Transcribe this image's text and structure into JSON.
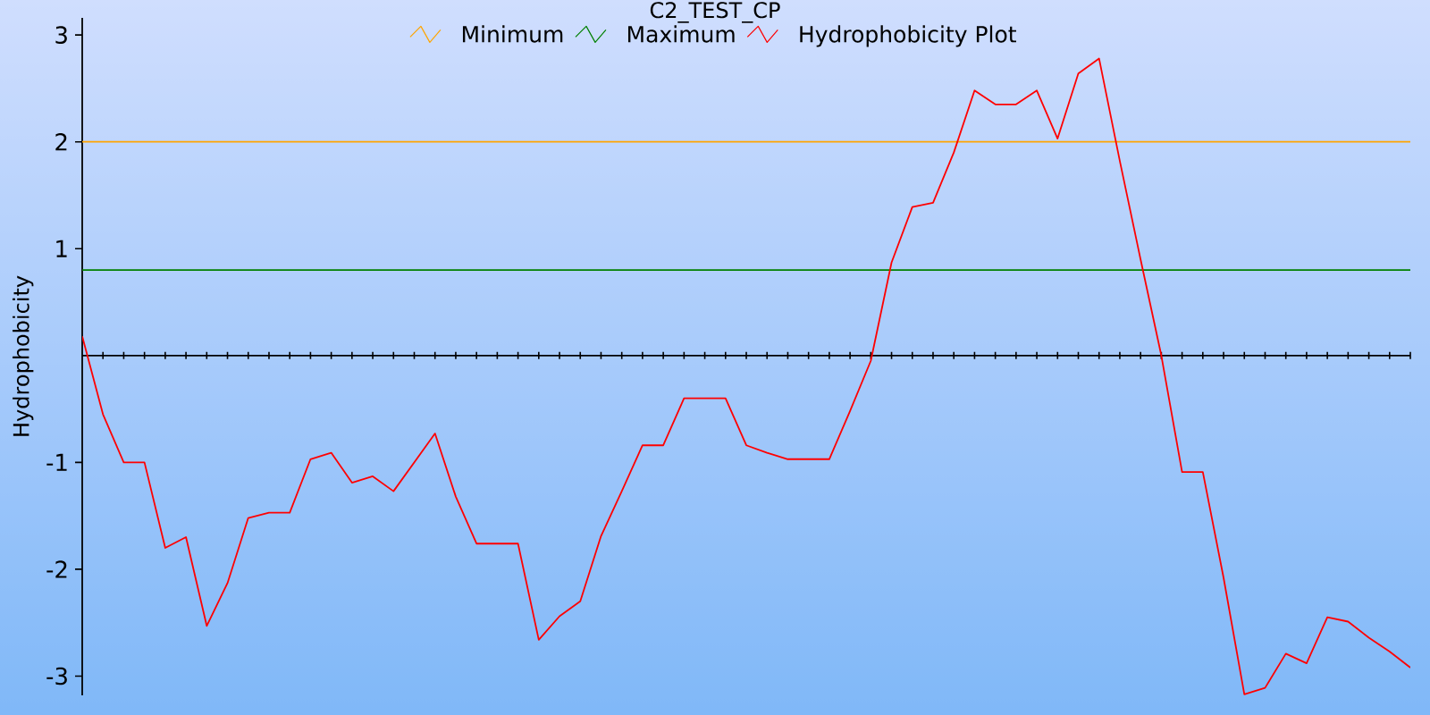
{
  "chart_data": {
    "type": "line",
    "title": "C2_TEST_CP",
    "ylabel": "Hydrophobicity",
    "categories": [
      null,
      null,
      null,
      null,
      null,
      null,
      null,
      null,
      null,
      null,
      null,
      null,
      null,
      null,
      null,
      null,
      null,
      null,
      null,
      null,
      null,
      null,
      null,
      null,
      null,
      null,
      null,
      null,
      null,
      null,
      null,
      null,
      null,
      null,
      null,
      null,
      null,
      null,
      null,
      null,
      null,
      null,
      null,
      null,
      null,
      null,
      null,
      null,
      null,
      null,
      null,
      null,
      null,
      null,
      null,
      null,
      null,
      null,
      null,
      null,
      null,
      null,
      null,
      null,
      null
    ],
    "series": [
      {
        "name": "Minimum",
        "color": "#ffa500",
        "values": [
          2,
          2,
          2,
          2,
          2,
          2,
          2,
          2,
          2,
          2,
          2,
          2,
          2,
          2,
          2,
          2,
          2,
          2,
          2,
          2,
          2,
          2,
          2,
          2,
          2,
          2,
          2,
          2,
          2,
          2,
          2,
          2,
          2,
          2,
          2,
          2,
          2,
          2,
          2,
          2,
          2,
          2,
          2,
          2,
          2,
          2,
          2,
          2,
          2,
          2,
          2,
          2,
          2,
          2,
          2,
          2,
          2,
          2,
          2,
          2,
          2,
          2,
          2,
          2,
          2
        ]
      },
      {
        "name": "Maximum",
        "color": "#008000",
        "values": [
          0.8,
          0.8,
          0.8,
          0.8,
          0.8,
          0.8,
          0.8,
          0.8,
          0.8,
          0.8,
          0.8,
          0.8,
          0.8,
          0.8,
          0.8,
          0.8,
          0.8,
          0.8,
          0.8,
          0.8,
          0.8,
          0.8,
          0.8,
          0.8,
          0.8,
          0.8,
          0.8,
          0.8,
          0.8,
          0.8,
          0.8,
          0.8,
          0.8,
          0.8,
          0.8,
          0.8,
          0.8,
          0.8,
          0.8,
          0.8,
          0.8,
          0.8,
          0.8,
          0.8,
          0.8,
          0.8,
          0.8,
          0.8,
          0.8,
          0.8,
          0.8,
          0.8,
          0.8,
          0.8,
          0.8,
          0.8,
          0.8,
          0.8,
          0.8,
          0.8,
          0.8,
          0.8,
          0.8,
          0.8,
          0.8
        ]
      },
      {
        "name": "Hydrophobicity Plot",
        "color": "#ff0000",
        "values": [
          0.18,
          -0.55,
          -1.0,
          -1.0,
          -1.8,
          -1.7,
          -2.53,
          -2.13,
          -1.52,
          -1.47,
          -1.47,
          -0.97,
          -0.91,
          -1.19,
          -1.13,
          -1.27,
          -1.0,
          -0.73,
          -1.32,
          -1.76,
          -1.76,
          -1.76,
          -2.66,
          -2.44,
          -2.3,
          -1.69,
          -1.27,
          -0.84,
          -0.84,
          -0.4,
          -0.4,
          -0.4,
          -0.84,
          -0.91,
          -0.97,
          -0.97,
          -0.97,
          -0.52,
          -0.05,
          0.87,
          1.39,
          1.43,
          1.9,
          2.48,
          2.35,
          2.35,
          2.48,
          2.03,
          2.64,
          2.78,
          1.82,
          0.9,
          0.0,
          -1.09,
          -1.09,
          -2.08,
          -3.17,
          -3.11,
          -2.79,
          -2.88,
          -2.45,
          -2.49,
          -2.64,
          -2.77,
          -2.92
        ]
      }
    ],
    "ylim": [
      -3.18,
      3.16
    ],
    "yticks": [
      -3,
      -2,
      -1,
      1,
      2,
      3
    ],
    "legend": "top",
    "tick_labels": "y"
  }
}
